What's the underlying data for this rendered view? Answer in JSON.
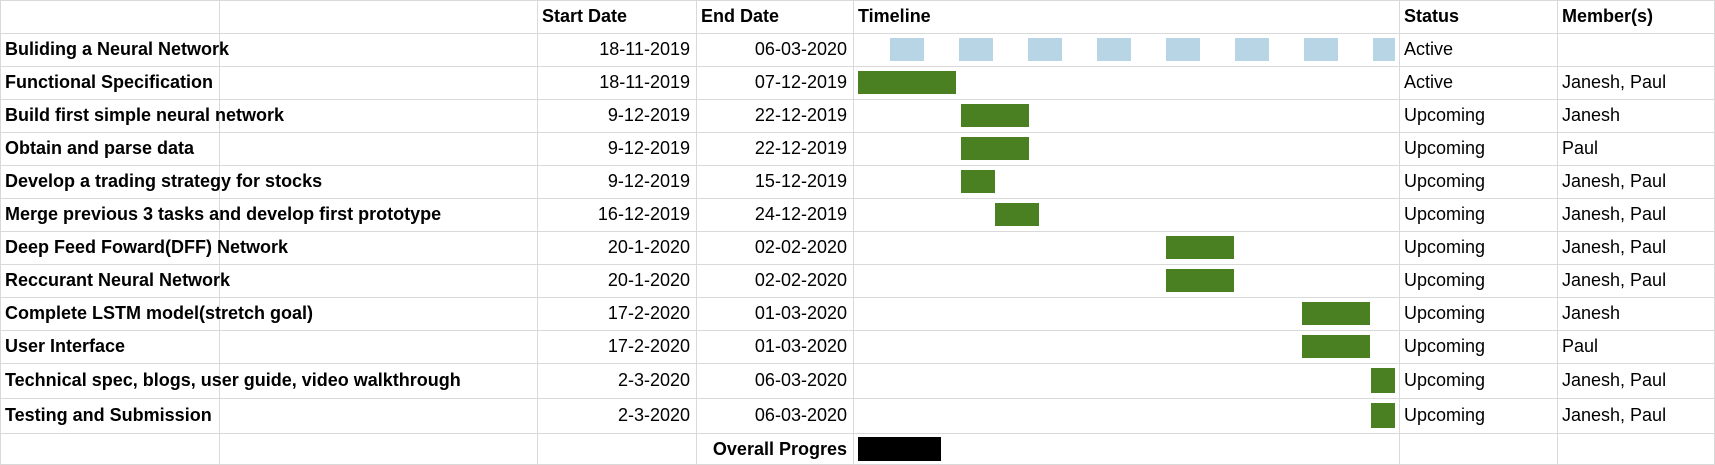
{
  "headers": {
    "task": "",
    "start": "Start Date",
    "end": "End Date",
    "timeline": "Timeline",
    "status": "Status",
    "members": "Member(s)"
  },
  "colors": {
    "grid": "#d9d9d9",
    "task_bar": "#4a7f22",
    "summary_bar": "#b8d5e6",
    "overall_bar": "#000000"
  },
  "timeline_range": {
    "start": "2019-11-18",
    "end": "2020-03-06"
  },
  "rows": [
    {
      "task": "Buliding a Neural Network",
      "start": "18-11-2019",
      "end": "06-03-2020",
      "status": "Active",
      "members": "",
      "bar": {
        "from": "2019-11-18",
        "to": "2020-03-06",
        "style": "summary"
      }
    },
    {
      "task": "Functional Specification",
      "start": "18-11-2019",
      "end": "07-12-2019",
      "status": "Active",
      "members": "Janesh, Paul",
      "bar": {
        "from": "2019-11-18",
        "to": "2019-12-07",
        "style": "task"
      }
    },
    {
      "task": "Build first simple neural network",
      "start": "9-12-2019",
      "end": "22-12-2019",
      "status": "Upcoming",
      "members": "Janesh",
      "bar": {
        "from": "2019-12-09",
        "to": "2019-12-22",
        "style": "task"
      }
    },
    {
      "task": "Obtain and parse data",
      "start": "9-12-2019",
      "end": "22-12-2019",
      "status": "Upcoming",
      "members": "Paul",
      "bar": {
        "from": "2019-12-09",
        "to": "2019-12-22",
        "style": "task"
      }
    },
    {
      "task": "Develop a trading strategy for stocks",
      "start": "9-12-2019",
      "end": "15-12-2019",
      "status": "Upcoming",
      "members": "Janesh, Paul",
      "bar": {
        "from": "2019-12-09",
        "to": "2019-12-15",
        "style": "task"
      }
    },
    {
      "task": "Merge previous 3 tasks and develop first prototype",
      "start": "16-12-2019",
      "end": "24-12-2019",
      "status": "Upcoming",
      "members": "Janesh, Paul",
      "bar": {
        "from": "2019-12-16",
        "to": "2019-12-24",
        "style": "task"
      }
    },
    {
      "task": "Deep Feed Foward(DFF) Network",
      "start": "20-1-2020",
      "end": "02-02-2020",
      "status": "Upcoming",
      "members": "Janesh, Paul",
      "bar": {
        "from": "2020-01-20",
        "to": "2020-02-02",
        "style": "task"
      }
    },
    {
      "task": "Reccurant Neural Network",
      "start": "20-1-2020",
      "end": "02-02-2020",
      "status": "Upcoming",
      "members": "Janesh, Paul",
      "bar": {
        "from": "2020-01-20",
        "to": "2020-02-02",
        "style": "task"
      }
    },
    {
      "task": "Complete LSTM model(stretch goal)",
      "start": "17-2-2020",
      "end": "01-03-2020",
      "status": "Upcoming",
      "members": "Janesh",
      "bar": {
        "from": "2020-02-17",
        "to": "2020-03-01",
        "style": "task"
      }
    },
    {
      "task": "User Interface",
      "start": "17-2-2020",
      "end": "01-03-2020",
      "status": "Upcoming",
      "members": "Paul",
      "bar": {
        "from": "2020-02-17",
        "to": "2020-03-01",
        "style": "task"
      }
    },
    {
      "task": "Technical spec, blogs, user guide, video walkthrough",
      "start": "2-3-2020",
      "end": "06-03-2020",
      "status": "Upcoming",
      "members": "Janesh, Paul",
      "bar": {
        "from": "2020-03-02",
        "to": "2020-03-06",
        "style": "task"
      }
    },
    {
      "task": "Testing and Submission",
      "start": "2-3-2020",
      "end": "06-03-2020",
      "status": "Upcoming",
      "members": "Janesh, Paul",
      "bar": {
        "from": "2020-03-02",
        "to": "2020-03-06",
        "style": "task"
      }
    }
  ],
  "overall": {
    "label": "Overall Progres",
    "progress_fraction": 0.17
  }
}
